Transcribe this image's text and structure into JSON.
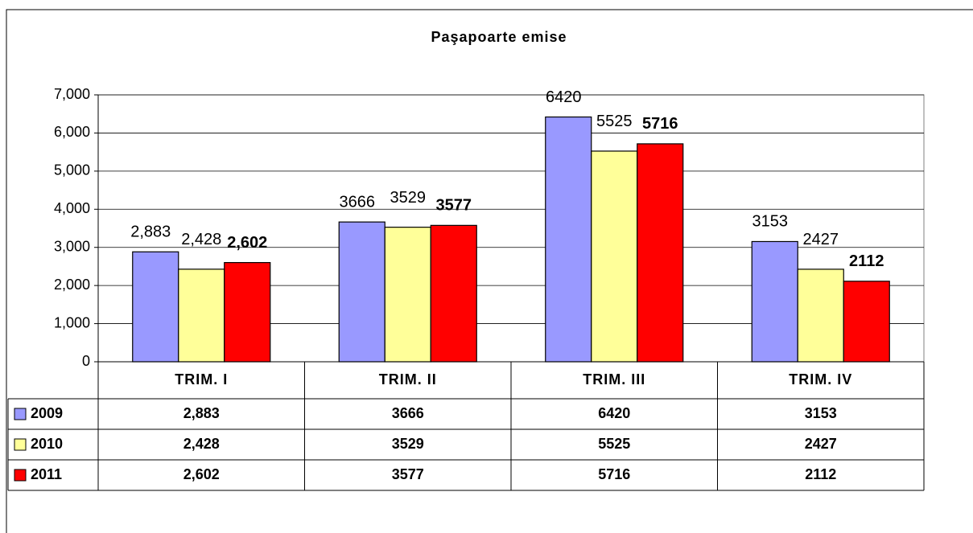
{
  "chart_data": {
    "type": "bar",
    "title": "Paşapoarte emise",
    "categories": [
      "TRIM. I",
      "TRIM. II",
      "TRIM. III",
      "TRIM. IV"
    ],
    "series": [
      {
        "name": "2009",
        "color": "#9999ff",
        "values": [
          2883,
          3666,
          6420,
          3153
        ],
        "value_labels": [
          "2,883",
          "3666",
          "6420",
          "3153"
        ]
      },
      {
        "name": "2010",
        "color": "#ffff99",
        "values": [
          2428,
          3529,
          5525,
          2427
        ],
        "value_labels": [
          "2,428",
          "3529",
          "5525",
          "2427"
        ]
      },
      {
        "name": "2011",
        "color": "#ff0000",
        "values": [
          2602,
          3577,
          5716,
          2112
        ],
        "value_labels": [
          "2,602",
          "3577",
          "5716",
          "2112"
        ]
      }
    ],
    "ylim": [
      0,
      7000
    ],
    "yticks": [
      0,
      {
        "value": 1000,
        "label": "1,000"
      },
      {
        "value": 2000,
        "label": "2,000"
      },
      {
        "value": 3000,
        "label": "3,000"
      },
      {
        "value": 4000,
        "label": "4,000"
      },
      {
        "value": 5000,
        "label": "5,000"
      },
      {
        "value": 6000,
        "label": "6,000"
      },
      {
        "value": 7000,
        "label": "7,000"
      }
    ],
    "grid": true
  }
}
